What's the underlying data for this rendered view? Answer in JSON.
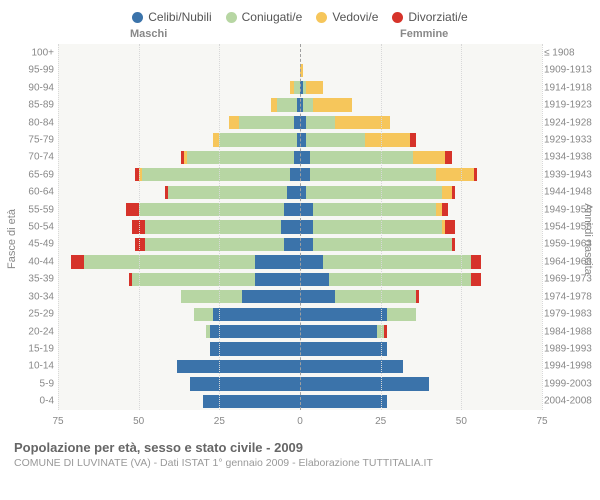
{
  "legend": [
    {
      "label": "Celibi/Nubili",
      "color": "#3b73aa"
    },
    {
      "label": "Coniugati/e",
      "color": "#b7d6a3"
    },
    {
      "label": "Vedovi/e",
      "color": "#f6c65b"
    },
    {
      "label": "Divorziati/e",
      "color": "#d6332a"
    }
  ],
  "header_m": "Maschi",
  "header_f": "Femmine",
  "ylabel_left": "Fasce di età",
  "ylabel_right": "Anni di nascita",
  "footer_title": "Popolazione per età, sesso e stato civile - 2009",
  "footer_sub": "COMUNE DI LUVINATE (VA) - Dati ISTAT 1° gennaio 2009 - Elaborazione TUTTITALIA.IT",
  "plot": {
    "type": "population-pyramid",
    "background_color": "#f7f7f4",
    "grid_color": "#d8d8d8",
    "center_line_color": "#a0a0a0",
    "xlim_each_side": 75,
    "xticks": [
      75,
      50,
      25,
      0,
      25,
      50,
      75
    ],
    "age_label_fontsize": 10,
    "bar_fill_ratio": 0.76,
    "colors": {
      "single": "#3b73aa",
      "married": "#b7d6a3",
      "widowed": "#f6c65b",
      "divorced": "#d6332a"
    }
  },
  "rows": [
    {
      "age": "0-4",
      "birth": "2004-2008",
      "m": {
        "s": 30,
        "c": 0,
        "w": 0,
        "d": 0
      },
      "f": {
        "s": 27,
        "c": 0,
        "w": 0,
        "d": 0
      }
    },
    {
      "age": "5-9",
      "birth": "1999-2003",
      "m": {
        "s": 34,
        "c": 0,
        "w": 0,
        "d": 0
      },
      "f": {
        "s": 40,
        "c": 0,
        "w": 0,
        "d": 0
      }
    },
    {
      "age": "10-14",
      "birth": "1994-1998",
      "m": {
        "s": 38,
        "c": 0,
        "w": 0,
        "d": 0
      },
      "f": {
        "s": 32,
        "c": 0,
        "w": 0,
        "d": 0
      }
    },
    {
      "age": "15-19",
      "birth": "1989-1993",
      "m": {
        "s": 28,
        "c": 0,
        "w": 0,
        "d": 0
      },
      "f": {
        "s": 27,
        "c": 0,
        "w": 0,
        "d": 0
      }
    },
    {
      "age": "20-24",
      "birth": "1984-1988",
      "m": {
        "s": 28,
        "c": 1,
        "w": 0,
        "d": 0
      },
      "f": {
        "s": 24,
        "c": 2,
        "w": 0,
        "d": 1
      }
    },
    {
      "age": "25-29",
      "birth": "1979-1983",
      "m": {
        "s": 27,
        "c": 6,
        "w": 0,
        "d": 0
      },
      "f": {
        "s": 27,
        "c": 9,
        "w": 0,
        "d": 0
      }
    },
    {
      "age": "30-34",
      "birth": "1974-1978",
      "m": {
        "s": 18,
        "c": 19,
        "w": 0,
        "d": 0
      },
      "f": {
        "s": 11,
        "c": 25,
        "w": 0,
        "d": 1
      }
    },
    {
      "age": "35-39",
      "birth": "1969-1973",
      "m": {
        "s": 14,
        "c": 38,
        "w": 0,
        "d": 1
      },
      "f": {
        "s": 9,
        "c": 44,
        "w": 0,
        "d": 3
      }
    },
    {
      "age": "40-44",
      "birth": "1964-1968",
      "m": {
        "s": 14,
        "c": 53,
        "w": 0,
        "d": 4
      },
      "f": {
        "s": 7,
        "c": 46,
        "w": 0,
        "d": 3
      }
    },
    {
      "age": "45-49",
      "birth": "1959-1963",
      "m": {
        "s": 5,
        "c": 43,
        "w": 0,
        "d": 3
      },
      "f": {
        "s": 4,
        "c": 43,
        "w": 0,
        "d": 1
      }
    },
    {
      "age": "50-54",
      "birth": "1954-1958",
      "m": {
        "s": 6,
        "c": 42,
        "w": 0,
        "d": 4
      },
      "f": {
        "s": 4,
        "c": 40,
        "w": 1,
        "d": 3
      }
    },
    {
      "age": "55-59",
      "birth": "1949-1953",
      "m": {
        "s": 5,
        "c": 45,
        "w": 0,
        "d": 4
      },
      "f": {
        "s": 4,
        "c": 38,
        "w": 2,
        "d": 2
      }
    },
    {
      "age": "60-64",
      "birth": "1944-1948",
      "m": {
        "s": 4,
        "c": 37,
        "w": 0,
        "d": 1
      },
      "f": {
        "s": 2,
        "c": 42,
        "w": 3,
        "d": 1
      }
    },
    {
      "age": "65-69",
      "birth": "1939-1943",
      "m": {
        "s": 3,
        "c": 46,
        "w": 1,
        "d": 1
      },
      "f": {
        "s": 3,
        "c": 39,
        "w": 12,
        "d": 1
      }
    },
    {
      "age": "70-74",
      "birth": "1934-1938",
      "m": {
        "s": 2,
        "c": 33,
        "w": 1,
        "d": 1
      },
      "f": {
        "s": 3,
        "c": 32,
        "w": 10,
        "d": 2
      }
    },
    {
      "age": "75-79",
      "birth": "1929-1933",
      "m": {
        "s": 1,
        "c": 24,
        "w": 2,
        "d": 0
      },
      "f": {
        "s": 2,
        "c": 18,
        "w": 14,
        "d": 2
      }
    },
    {
      "age": "80-84",
      "birth": "1924-1928",
      "m": {
        "s": 2,
        "c": 17,
        "w": 3,
        "d": 0
      },
      "f": {
        "s": 2,
        "c": 9,
        "w": 17,
        "d": 0
      }
    },
    {
      "age": "85-89",
      "birth": "1919-1923",
      "m": {
        "s": 1,
        "c": 6,
        "w": 2,
        "d": 0
      },
      "f": {
        "s": 1,
        "c": 3,
        "w": 12,
        "d": 0
      }
    },
    {
      "age": "90-94",
      "birth": "1914-1918",
      "m": {
        "s": 0,
        "c": 2,
        "w": 1,
        "d": 0
      },
      "f": {
        "s": 1,
        "c": 1,
        "w": 5,
        "d": 0
      }
    },
    {
      "age": "95-99",
      "birth": "1909-1913",
      "m": {
        "s": 0,
        "c": 0,
        "w": 0,
        "d": 0
      },
      "f": {
        "s": 0,
        "c": 0,
        "w": 1,
        "d": 0
      }
    },
    {
      "age": "100+",
      "birth": "≤ 1908",
      "m": {
        "s": 0,
        "c": 0,
        "w": 0,
        "d": 0
      },
      "f": {
        "s": 0,
        "c": 0,
        "w": 0,
        "d": 0
      }
    }
  ]
}
